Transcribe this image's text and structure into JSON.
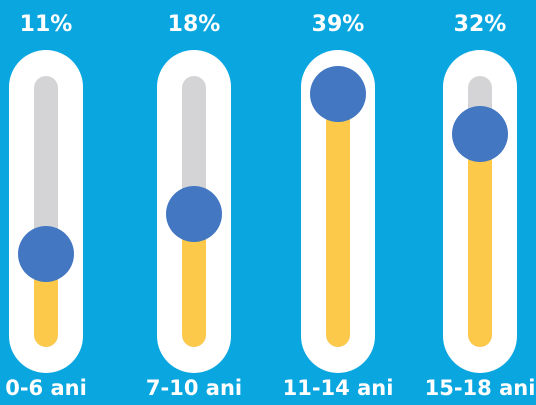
{
  "chart_data": {
    "type": "bar",
    "categories": [
      "0-6 ani",
      "7-10 ani",
      "11-14 ani",
      "15-18 ani"
    ],
    "values": [
      11,
      18,
      39,
      32
    ],
    "value_labels": [
      "11%",
      "18%",
      "39%",
      "32%"
    ],
    "ylim": [
      0,
      40
    ]
  },
  "colors": {
    "background": "#0aa6df",
    "fill": "#fdc94a",
    "track": "#d4d4d6",
    "knob": "#4377c1",
    "text": "#ffffff"
  }
}
